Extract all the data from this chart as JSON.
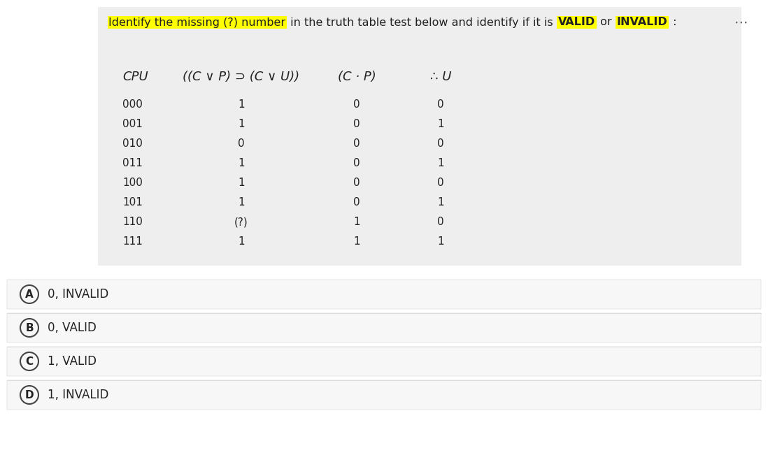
{
  "bg_color": "#f7f7f7",
  "table_bg": "#ebebeb",
  "white_bg": "#ffffff",
  "prompt_text": "Identify the missing (?) number in the truth table test below and identify if it is VALID or INVALID :",
  "highlight_phrase1": "Identify the missing (?) number",
  "highlight_phrase2": "VALID",
  "highlight_phrase3": "INVALID",
  "highlight_color": "#ffff00",
  "dots": "⋯",
  "col_headers": [
    "CPU",
    "((C ∨ P) ⊃ (C ∨ U))",
    "(C · P)",
    "∴ U"
  ],
  "rows": [
    [
      "000",
      "1",
      "0",
      "0"
    ],
    [
      "001",
      "1",
      "0",
      "1"
    ],
    [
      "010",
      "0",
      "0",
      "0"
    ],
    [
      "011",
      "1",
      "0",
      "1"
    ],
    [
      "100",
      "1",
      "0",
      "0"
    ],
    [
      "101",
      "1",
      "0",
      "1"
    ],
    [
      "110",
      "(?)",
      "1",
      "0"
    ],
    [
      "111",
      "1",
      "1",
      "1"
    ]
  ],
  "options": [
    {
      "letter": "A",
      "text": "0, INVALID"
    },
    {
      "letter": "B",
      "text": "0, VALID"
    },
    {
      "letter": "C",
      "text": "1, VALID"
    },
    {
      "letter": "D",
      "text": "1, INVALID"
    }
  ],
  "text_color": "#222222",
  "option_bg": "#f7f7f7",
  "option_border": "#dddddd",
  "circle_color": "#444444"
}
